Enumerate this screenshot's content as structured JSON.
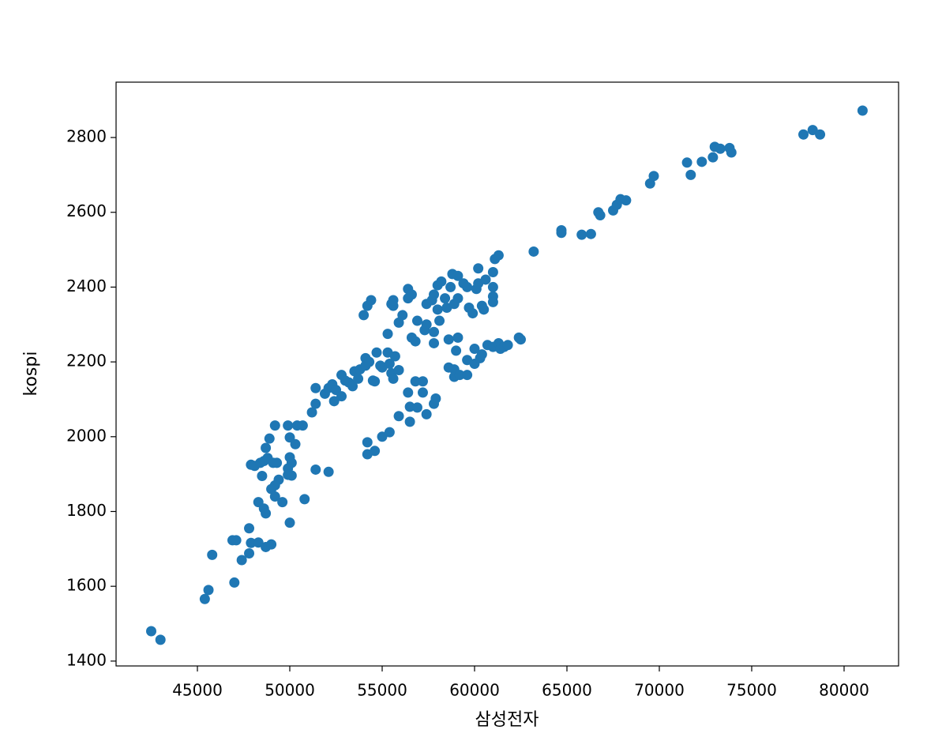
{
  "chart_data": {
    "type": "scatter",
    "xlabel": "삼성전자",
    "ylabel": "kospi",
    "color": "#1f77b4",
    "xlim": [
      40598,
      82949
    ],
    "ylim": [
      1387,
      2948
    ],
    "xticks": [
      45000,
      50000,
      55000,
      60000,
      65000,
      70000,
      75000,
      80000
    ],
    "yticks": [
      1400,
      1600,
      1800,
      2000,
      2200,
      2400,
      2600,
      2800
    ],
    "grid": false,
    "x": [
      42500,
      43000,
      45400,
      45600,
      45800,
      47000,
      46900,
      47100,
      47400,
      47800,
      47800,
      47900,
      48300,
      48700,
      49000,
      47900,
      48100,
      48400,
      48600,
      48800,
      48700,
      48900,
      49100,
      48500,
      49300,
      49200,
      49900,
      50000,
      50300,
      50400,
      50700,
      50000,
      50100,
      49900,
      49900,
      50100,
      49400,
      49200,
      49000,
      49200,
      49600,
      48300,
      48600,
      48700,
      50000,
      50800,
      51400,
      52100,
      51200,
      51400,
      51400,
      51900,
      52100,
      52300,
      52400,
      52500,
      52800,
      52800,
      53000,
      53200,
      53400,
      53500,
      53700,
      53800,
      54100,
      54100,
      54300,
      54500,
      54600,
      54700,
      54900,
      55000,
      55300,
      55400,
      55500,
      55700,
      55600,
      55900,
      54000,
      54200,
      54400,
      55300,
      55500,
      55600,
      55600,
      55900,
      56100,
      56400,
      56400,
      56600,
      56600,
      56800,
      56900,
      57300,
      57400,
      57400,
      57700,
      57800,
      57800,
      57800,
      58000,
      58100,
      58000,
      58200,
      58400,
      58500,
      58700,
      58800,
      58900,
      59100,
      59100,
      59400,
      59600,
      59700,
      59900,
      60100,
      60200,
      60200,
      60400,
      60500,
      60600,
      61000,
      61000,
      61000,
      61000,
      61100,
      61300,
      58600,
      59100,
      59000,
      58600,
      58900,
      58900,
      59200,
      59600,
      59600,
      60000,
      60000,
      60300,
      60400,
      60700,
      61000,
      61300,
      61400,
      61600,
      61800,
      62400,
      62500,
      54200,
      54200,
      54600,
      55000,
      55400,
      55900,
      56400,
      56500,
      56500,
      56900,
      56800,
      57200,
      57200,
      57400,
      57800,
      57900,
      63200,
      64700,
      64700,
      65800,
      66300,
      66700,
      66800,
      67500,
      67700,
      67900,
      68200,
      69500,
      69700,
      71500,
      71700,
      72300,
      72900,
      73000,
      73300,
      73800,
      73900,
      77800,
      78300,
      78700,
      81000
    ],
    "y": [
      1480,
      1457,
      1566,
      1590,
      1684,
      1610,
      1723,
      1723,
      1670,
      1755,
      1688,
      1716,
      1717,
      1705,
      1712,
      1925,
      1922,
      1930,
      1935,
      1943,
      1970,
      1995,
      1930,
      1895,
      1930,
      2030,
      2030,
      1998,
      1980,
      2030,
      2030,
      1945,
      1930,
      1915,
      1898,
      1896,
      1885,
      1870,
      1860,
      1840,
      1825,
      1825,
      1808,
      1795,
      1770,
      1833,
      1912,
      1906,
      2065,
      2088,
      2130,
      2115,
      2130,
      2140,
      2095,
      2125,
      2108,
      2165,
      2150,
      2145,
      2135,
      2175,
      2155,
      2180,
      2190,
      2210,
      2200,
      2150,
      2148,
      2225,
      2190,
      2185,
      2225,
      2195,
      2170,
      2215,
      2155,
      2178,
      2325,
      2350,
      2365,
      2275,
      2355,
      2350,
      2365,
      2305,
      2325,
      2370,
      2395,
      2380,
      2265,
      2255,
      2310,
      2285,
      2300,
      2355,
      2365,
      2380,
      2280,
      2250,
      2340,
      2310,
      2405,
      2415,
      2370,
      2345,
      2400,
      2435,
      2355,
      2430,
      2370,
      2410,
      2400,
      2345,
      2330,
      2395,
      2410,
      2450,
      2350,
      2340,
      2420,
      2400,
      2375,
      2360,
      2440,
      2475,
      2485,
      2260,
      2265,
      2230,
      2185,
      2180,
      2160,
      2165,
      2165,
      2205,
      2195,
      2235,
      2210,
      2220,
      2245,
      2240,
      2250,
      2235,
      2240,
      2245,
      2265,
      2260,
      1985,
      1953,
      1962,
      2000,
      2012,
      2055,
      2118,
      2040,
      2080,
      2078,
      2148,
      2148,
      2118,
      2060,
      2088,
      2102,
      2495,
      2552,
      2545,
      2540,
      2542,
      2600,
      2592,
      2605,
      2620,
      2635,
      2632,
      2677,
      2697,
      2733,
      2700,
      2735,
      2747,
      2775,
      2770,
      2772,
      2760,
      2808,
      2820,
      2808,
      2872
    ]
  }
}
